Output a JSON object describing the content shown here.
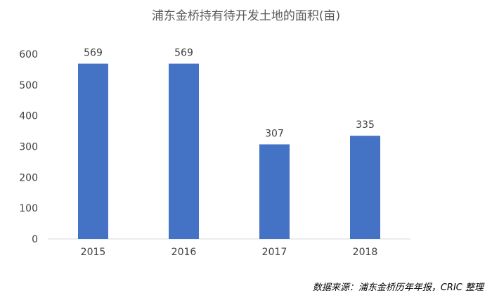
{
  "chart_data": {
    "type": "bar",
    "title": "浦东金桥持有待开发土地的面积(亩)",
    "categories": [
      "2015",
      "2016",
      "2017",
      "2018"
    ],
    "values": [
      569,
      569,
      307,
      335
    ],
    "ylim": [
      0,
      600
    ],
    "yticks": [
      "0",
      "100",
      "200",
      "300",
      "400",
      "500",
      "600"
    ],
    "xlabel": "",
    "ylabel": "",
    "grid": false,
    "legend": "none",
    "bar_color": "#4472C4",
    "label_color": "#404040",
    "axis_color": "#D9D9D9"
  },
  "source_note": "数据来源：浦东金桥历年年报，CRIC 整理"
}
